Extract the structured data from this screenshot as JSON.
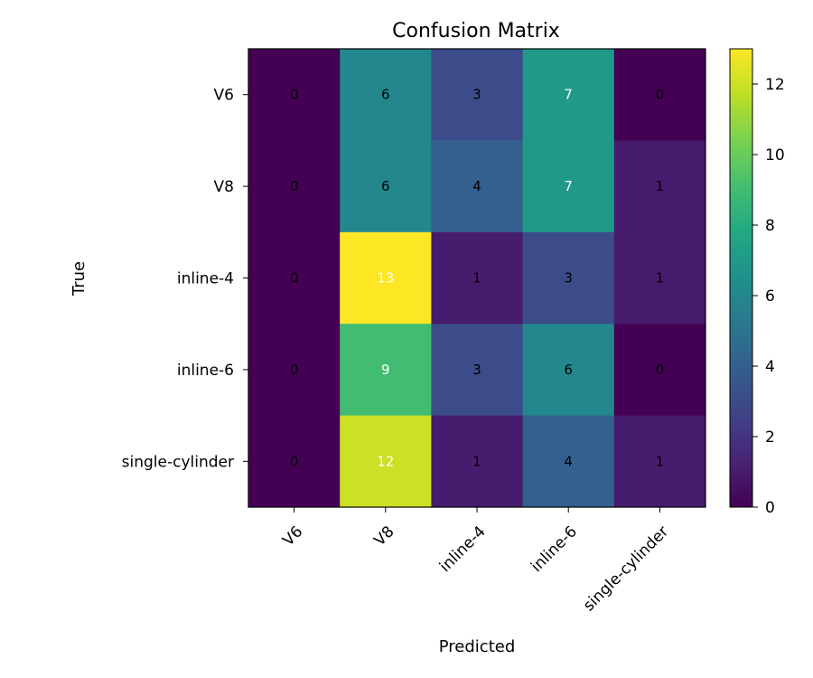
{
  "chart_data": {
    "type": "heatmap",
    "title": "Confusion Matrix",
    "xlabel": "Predicted",
    "ylabel": "True",
    "x_categories": [
      "V6",
      "V8",
      "inline-4",
      "inline-6",
      "single-cylinder"
    ],
    "y_categories": [
      "V6",
      "V8",
      "inline-4",
      "inline-6",
      "single-cylinder"
    ],
    "values": [
      [
        0,
        6,
        3,
        7,
        0
      ],
      [
        0,
        6,
        4,
        7,
        1
      ],
      [
        0,
        13,
        1,
        3,
        1
      ],
      [
        0,
        9,
        3,
        6,
        0
      ],
      [
        0,
        12,
        1,
        4,
        1
      ]
    ],
    "colormap": "viridis",
    "vmin": 0,
    "vmax": 13,
    "colorbar_ticks": [
      0,
      2,
      4,
      6,
      8,
      10,
      12
    ],
    "grid": false
  }
}
